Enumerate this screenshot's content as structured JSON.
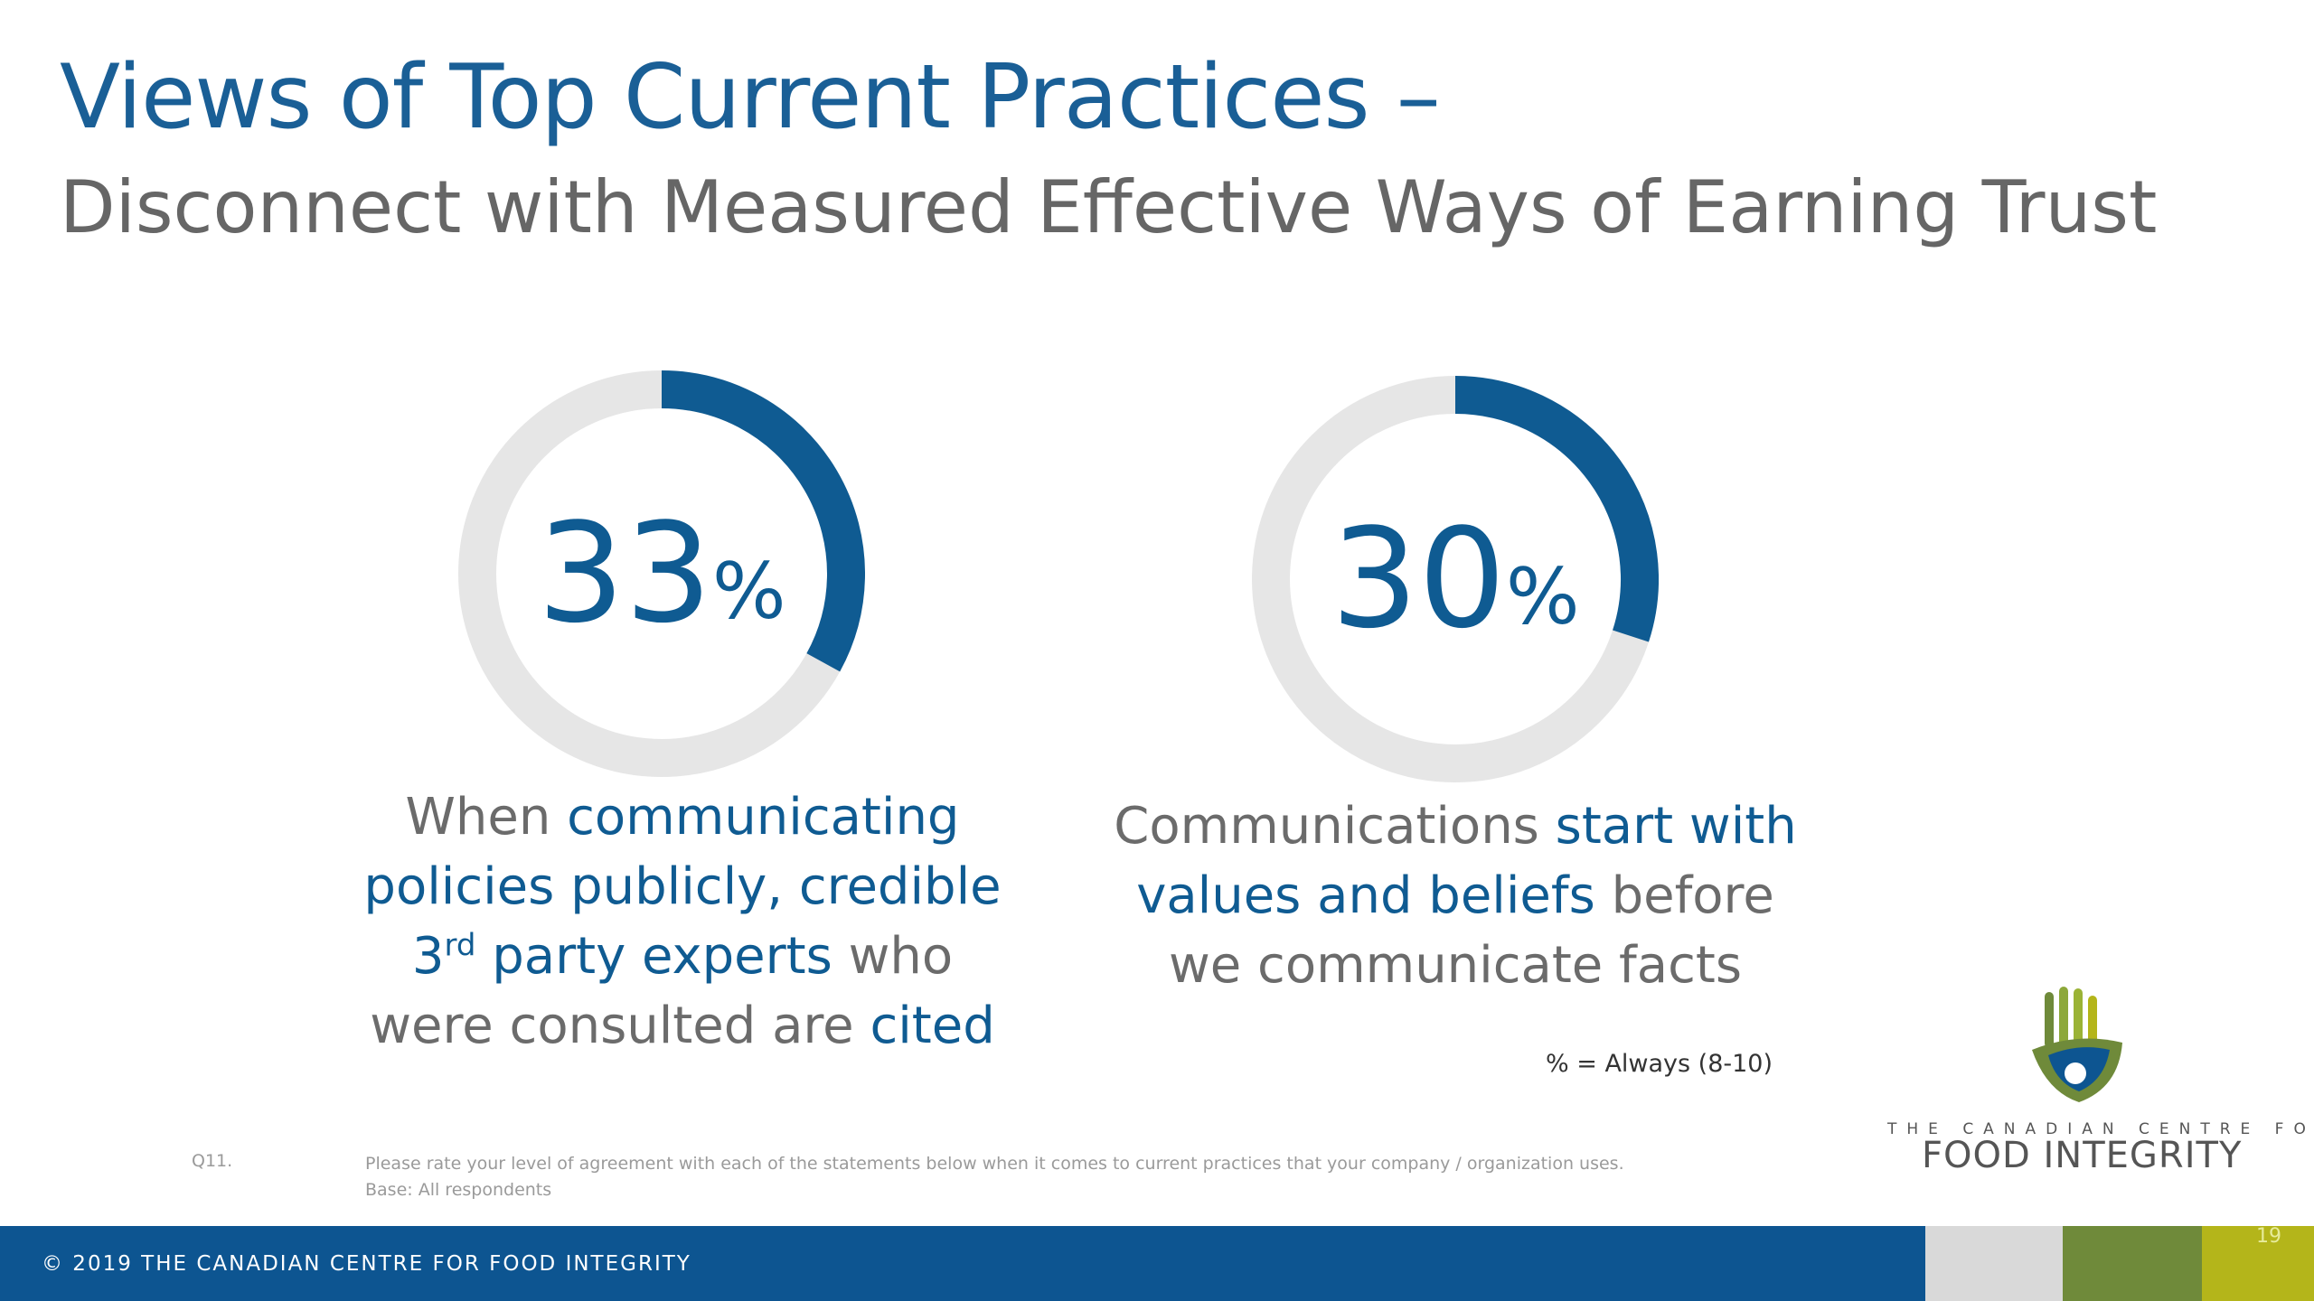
{
  "title": "Views of Top Current Practices –",
  "subtitle": "Disconnect with Measured Effective Ways of Earning Trust",
  "chart_data": [
    {
      "type": "pie",
      "value": 33,
      "value_text": "33",
      "unit": "%",
      "description_parts": [
        {
          "text": "When ",
          "highlight": false
        },
        {
          "text": "communicating",
          "highlight": true
        },
        {
          "br": true
        },
        {
          "text": "policies publicly, credible",
          "highlight": true
        },
        {
          "br": true
        },
        {
          "text": "3",
          "highlight": true
        },
        {
          "text": "rd",
          "highlight": true,
          "sup": true
        },
        {
          "text": " party experts",
          "highlight": true
        },
        {
          "text": " who",
          "highlight": false
        },
        {
          "br": true
        },
        {
          "text": "were consulted are ",
          "highlight": false
        },
        {
          "text": "cited",
          "highlight": true
        }
      ]
    },
    {
      "type": "pie",
      "value": 30,
      "value_text": "30",
      "unit": "%",
      "description_parts": [
        {
          "text": "Communications ",
          "highlight": false
        },
        {
          "text": "start with",
          "highlight": true
        },
        {
          "br": true
        },
        {
          "text": "values and beliefs",
          "highlight": true
        },
        {
          "text": " before",
          "highlight": false
        },
        {
          "br": true
        },
        {
          "text": "we communicate facts",
          "highlight": false
        }
      ]
    }
  ],
  "note": "% = Always (8-10)",
  "question": {
    "label": "Q11.",
    "text": "Please rate your level of agreement with each of the statements below when it comes to current practices that your company / organization uses.",
    "base": "Base: All respondents"
  },
  "logo": {
    "line1": "THE CANADIAN CENTRE FOR",
    "line2": "FOOD INTEGRITY"
  },
  "footer": {
    "copyright": "© 2019 THE CANADIAN CENTRE FOR FOOD INTEGRITY",
    "page_number": "19"
  },
  "colors": {
    "accent": "#0f5b92",
    "ring_track": "#e6e6e6",
    "footer_bg": "#0d5591",
    "swatch_grey": "#d9d9d9",
    "swatch_green": "#6f8a3a",
    "swatch_lime": "#b4b51a"
  }
}
